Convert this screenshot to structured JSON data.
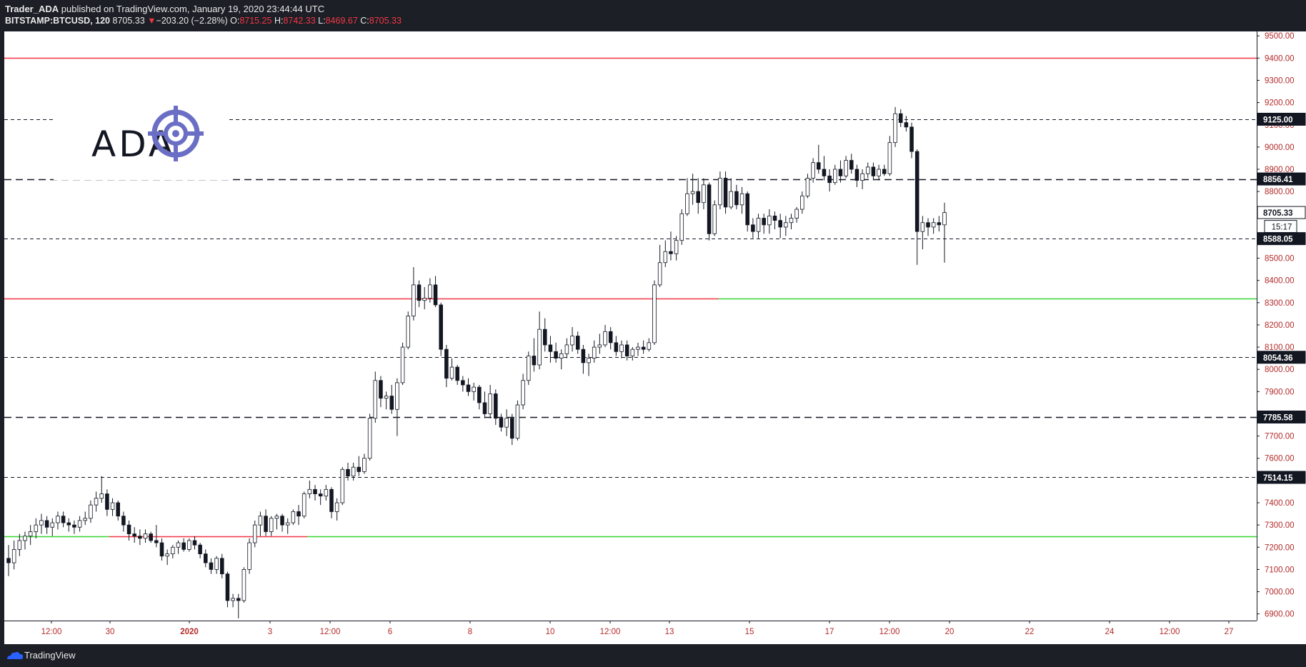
{
  "header": {
    "author": "Trader_ADA",
    "published_text": "published on TradingView.com, January 19, 2020 23:44:44 UTC",
    "symbol": "BITSTAMP:BTCUSD, 120",
    "last": "8705.33",
    "change_arrow": "▼",
    "change": "−203.20 (−2.28%)",
    "o_label": "O:",
    "o_value": "8715.25",
    "h_label": "H:",
    "h_value": "8742.33",
    "l_label": "L:",
    "l_value": "8469.67",
    "c_label": "C:",
    "c_value": "8705.33"
  },
  "watermark": {
    "text": "ADA",
    "icon": "crosshair-target-icon",
    "color": "#6a6ec4"
  },
  "footer": {
    "brand": "TradingView",
    "icon": "tradingview-cloud-icon"
  },
  "colors": {
    "background": "#ffffff",
    "candle_down": "#131722",
    "candle_up": "#ffffff",
    "resistance": "#f23645",
    "support": "#39d631",
    "axis_text": "#b52a2a",
    "level_dash": "#131722"
  },
  "chart_data": {
    "type": "candlestick",
    "symbol": "BITSTAMP:BTCUSD",
    "interval": "120",
    "ylim": [
      6870,
      9520
    ],
    "y_ticks": [
      6900,
      7000,
      7100,
      7200,
      7300,
      7400,
      7500,
      7600,
      7700,
      7800,
      7900,
      8000,
      8100,
      8200,
      8300,
      8400,
      8500,
      8600,
      8700,
      8800,
      8900,
      9000,
      9100,
      9200,
      9300,
      9400,
      9500
    ],
    "x_ticks": [
      "12:00",
      "30",
      "2020",
      "3",
      "12:00",
      "6",
      "8",
      "10",
      "12:00",
      "13",
      "15",
      "17",
      "12:00",
      "20",
      "22",
      "24",
      "12:00",
      "27"
    ],
    "x_tick_emphasis": "2020",
    "price_labels": [
      {
        "value": "9125.00",
        "style": "dash-fine"
      },
      {
        "value": "8856.41",
        "style": "dash-bold"
      },
      {
        "value": "8705.33",
        "style": "last-price"
      },
      {
        "value": "15:17",
        "style": "countdown"
      },
      {
        "value": "8588.05",
        "style": "dash-fine"
      },
      {
        "value": "8054.36",
        "style": "dash-fine"
      },
      {
        "value": "7785.58",
        "style": "dash-bold"
      },
      {
        "value": "7514.15",
        "style": "dash-fine"
      }
    ],
    "horizontal_levels": [
      {
        "price": 9400,
        "color": "red",
        "style": "solid"
      },
      {
        "price": 9125.0,
        "color": "black",
        "style": "dash-fine"
      },
      {
        "price": 8856.41,
        "color": "black",
        "style": "dash-bold"
      },
      {
        "price": 8588.05,
        "color": "black",
        "style": "dash-fine"
      },
      {
        "price": 8320,
        "color": "red-then-green",
        "flip_after": "14 00:00",
        "style": "solid"
      },
      {
        "price": 8054.36,
        "color": "black",
        "style": "dash-fine"
      },
      {
        "price": 7785.58,
        "color": "black",
        "style": "dash-bold"
      },
      {
        "price": 7514.15,
        "color": "black",
        "style": "dash-fine"
      },
      {
        "price": 7250,
        "color": "green-red-green",
        "style": "solid"
      }
    ],
    "candles": [
      [
        7150,
        7210,
        7070,
        7130
      ],
      [
        7130,
        7230,
        7100,
        7190
      ],
      [
        7190,
        7260,
        7160,
        7230
      ],
      [
        7230,
        7270,
        7190,
        7250
      ],
      [
        7250,
        7300,
        7210,
        7270
      ],
      [
        7270,
        7330,
        7240,
        7300
      ],
      [
        7300,
        7350,
        7260,
        7320
      ],
      [
        7320,
        7340,
        7260,
        7290
      ],
      [
        7290,
        7330,
        7250,
        7310
      ],
      [
        7310,
        7360,
        7280,
        7340
      ],
      [
        7340,
        7360,
        7290,
        7310
      ],
      [
        7310,
        7330,
        7270,
        7300
      ],
      [
        7300,
        7320,
        7260,
        7290
      ],
      [
        7290,
        7340,
        7270,
        7320
      ],
      [
        7320,
        7360,
        7300,
        7330
      ],
      [
        7330,
        7410,
        7310,
        7390
      ],
      [
        7390,
        7450,
        7360,
        7420
      ],
      [
        7420,
        7520,
        7400,
        7440
      ],
      [
        7440,
        7460,
        7340,
        7370
      ],
      [
        7370,
        7420,
        7340,
        7400
      ],
      [
        7400,
        7410,
        7320,
        7340
      ],
      [
        7340,
        7360,
        7270,
        7300
      ],
      [
        7300,
        7320,
        7230,
        7260
      ],
      [
        7260,
        7290,
        7220,
        7250
      ],
      [
        7250,
        7280,
        7210,
        7240
      ],
      [
        7240,
        7280,
        7220,
        7260
      ],
      [
        7260,
        7270,
        7220,
        7230
      ],
      [
        7230,
        7300,
        7200,
        7220
      ],
      [
        7220,
        7240,
        7140,
        7160
      ],
      [
        7160,
        7190,
        7120,
        7170
      ],
      [
        7170,
        7210,
        7150,
        7200
      ],
      [
        7200,
        7230,
        7170,
        7220
      ],
      [
        7220,
        7240,
        7180,
        7190
      ],
      [
        7190,
        7240,
        7180,
        7230
      ],
      [
        7230,
        7250,
        7190,
        7210
      ],
      [
        7210,
        7220,
        7150,
        7170
      ],
      [
        7170,
        7190,
        7110,
        7130
      ],
      [
        7130,
        7150,
        7080,
        7100
      ],
      [
        7100,
        7160,
        7080,
        7150
      ],
      [
        7150,
        7170,
        7060,
        7080
      ],
      [
        7080,
        7090,
        6930,
        6960
      ],
      [
        6960,
        6990,
        6930,
        6970
      ],
      [
        6970,
        6990,
        6880,
        6960
      ],
      [
        6960,
        7110,
        6950,
        7100
      ],
      [
        7100,
        7240,
        7080,
        7220
      ],
      [
        7220,
        7320,
        7200,
        7300
      ],
      [
        7300,
        7360,
        7250,
        7340
      ],
      [
        7340,
        7370,
        7250,
        7270
      ],
      [
        7270,
        7340,
        7250,
        7330
      ],
      [
        7330,
        7350,
        7280,
        7340
      ],
      [
        7340,
        7350,
        7270,
        7300
      ],
      [
        7300,
        7330,
        7260,
        7310
      ],
      [
        7310,
        7370,
        7300,
        7360
      ],
      [
        7360,
        7390,
        7300,
        7340
      ],
      [
        7340,
        7450,
        7330,
        7440
      ],
      [
        7440,
        7500,
        7420,
        7460
      ],
      [
        7460,
        7480,
        7410,
        7440
      ],
      [
        7440,
        7460,
        7390,
        7430
      ],
      [
        7430,
        7480,
        7410,
        7460
      ],
      [
        7460,
        7470,
        7330,
        7360
      ],
      [
        7360,
        7420,
        7320,
        7400
      ],
      [
        7400,
        7560,
        7390,
        7550
      ],
      [
        7550,
        7580,
        7500,
        7520
      ],
      [
        7520,
        7580,
        7500,
        7560
      ],
      [
        7560,
        7610,
        7520,
        7540
      ],
      [
        7540,
        7620,
        7530,
        7600
      ],
      [
        7600,
        7800,
        7590,
        7780
      ],
      [
        7780,
        7990,
        7760,
        7950
      ],
      [
        7950,
        7970,
        7830,
        7870
      ],
      [
        7870,
        7900,
        7820,
        7880
      ],
      [
        7880,
        7930,
        7800,
        7820
      ],
      [
        7820,
        7960,
        7700,
        7940
      ],
      [
        7940,
        8120,
        7930,
        8100
      ],
      [
        8100,
        8260,
        8090,
        8240
      ],
      [
        8240,
        8460,
        8220,
        8380
      ],
      [
        8380,
        8400,
        8280,
        8310
      ],
      [
        8310,
        8370,
        8270,
        8320
      ],
      [
        8320,
        8410,
        8300,
        8380
      ],
      [
        8380,
        8420,
        8280,
        8290
      ],
      [
        8290,
        8300,
        8060,
        8090
      ],
      [
        8090,
        8110,
        7920,
        7960
      ],
      [
        7960,
        8050,
        7950,
        8010
      ],
      [
        8010,
        8020,
        7930,
        7950
      ],
      [
        7950,
        7970,
        7900,
        7930
      ],
      [
        7930,
        7960,
        7880,
        7900
      ],
      [
        7900,
        7940,
        7860,
        7920
      ],
      [
        7920,
        7930,
        7820,
        7850
      ],
      [
        7850,
        7900,
        7780,
        7800
      ],
      [
        7800,
        7930,
        7780,
        7890
      ],
      [
        7890,
        7910,
        7750,
        7780
      ],
      [
        7780,
        7800,
        7720,
        7740
      ],
      [
        7740,
        7820,
        7700,
        7780
      ],
      [
        7780,
        7800,
        7660,
        7690
      ],
      [
        7690,
        7860,
        7680,
        7840
      ],
      [
        7840,
        7980,
        7820,
        7950
      ],
      [
        7950,
        8080,
        7930,
        8060
      ],
      [
        8060,
        8140,
        7990,
        8020
      ],
      [
        8020,
        8260,
        8000,
        8180
      ],
      [
        8180,
        8230,
        8080,
        8110
      ],
      [
        8110,
        8150,
        8030,
        8080
      ],
      [
        8080,
        8120,
        8030,
        8050
      ],
      [
        8050,
        8090,
        8000,
        8070
      ],
      [
        8070,
        8140,
        8050,
        8110
      ],
      [
        8110,
        8190,
        8080,
        8150
      ],
      [
        8150,
        8170,
        8070,
        8090
      ],
      [
        8090,
        8110,
        7980,
        8030
      ],
      [
        8030,
        8070,
        7970,
        8050
      ],
      [
        8050,
        8130,
        8030,
        8100
      ],
      [
        8100,
        8160,
        8070,
        8110
      ],
      [
        8110,
        8200,
        8100,
        8170
      ],
      [
        8170,
        8190,
        8090,
        8120
      ],
      [
        8120,
        8150,
        8060,
        8080
      ],
      [
        8080,
        8130,
        8050,
        8110
      ],
      [
        8110,
        8130,
        8040,
        8060
      ],
      [
        8060,
        8100,
        8040,
        8090
      ],
      [
        8090,
        8120,
        8060,
        8100
      ],
      [
        8100,
        8130,
        8070,
        8090
      ],
      [
        8090,
        8140,
        8080,
        8120
      ],
      [
        8120,
        8400,
        8110,
        8380
      ],
      [
        8380,
        8560,
        8370,
        8480
      ],
      [
        8480,
        8580,
        8460,
        8530
      ],
      [
        8530,
        8620,
        8490,
        8520
      ],
      [
        8520,
        8600,
        8490,
        8580
      ],
      [
        8580,
        8720,
        8560,
        8700
      ],
      [
        8700,
        8860,
        8690,
        8790
      ],
      [
        8790,
        8880,
        8740,
        8800
      ],
      [
        8800,
        8860,
        8700,
        8750
      ],
      [
        8750,
        8860,
        8720,
        8830
      ],
      [
        8830,
        8840,
        8580,
        8610
      ],
      [
        8610,
        8760,
        8600,
        8740
      ],
      [
        8740,
        8890,
        8720,
        8860
      ],
      [
        8860,
        8890,
        8700,
        8730
      ],
      [
        8730,
        8860,
        8720,
        8800
      ],
      [
        8800,
        8830,
        8720,
        8740
      ],
      [
        8740,
        8820,
        8700,
        8790
      ],
      [
        8790,
        8800,
        8620,
        8650
      ],
      [
        8650,
        8680,
        8590,
        8620
      ],
      [
        8620,
        8700,
        8590,
        8680
      ],
      [
        8680,
        8700,
        8610,
        8650
      ],
      [
        8650,
        8720,
        8610,
        8690
      ],
      [
        8690,
        8710,
        8630,
        8670
      ],
      [
        8670,
        8700,
        8590,
        8640
      ],
      [
        8640,
        8690,
        8600,
        8660
      ],
      [
        8660,
        8700,
        8630,
        8680
      ],
      [
        8680,
        8730,
        8660,
        8720
      ],
      [
        8720,
        8800,
        8700,
        8780
      ],
      [
        8780,
        8880,
        8770,
        8860
      ],
      [
        8860,
        8950,
        8840,
        8930
      ],
      [
        8930,
        9010,
        8880,
        8900
      ],
      [
        8900,
        8960,
        8850,
        8870
      ],
      [
        8870,
        8900,
        8800,
        8840
      ],
      [
        8840,
        8920,
        8830,
        8900
      ],
      [
        8900,
        8940,
        8840,
        8870
      ],
      [
        8870,
        8960,
        8860,
        8940
      ],
      [
        8940,
        8970,
        8880,
        8900
      ],
      [
        8900,
        8920,
        8820,
        8850
      ],
      [
        8850,
        8900,
        8810,
        8880
      ],
      [
        8880,
        8930,
        8860,
        8910
      ],
      [
        8910,
        8930,
        8850,
        8870
      ],
      [
        8870,
        8920,
        8850,
        8900
      ],
      [
        8900,
        8920,
        8870,
        8880
      ],
      [
        8880,
        9050,
        8870,
        9020
      ],
      [
        9020,
        9180,
        9000,
        9150
      ],
      [
        9150,
        9170,
        9090,
        9110
      ],
      [
        9110,
        9140,
        9070,
        9090
      ],
      [
        9090,
        9110,
        8950,
        8980
      ],
      [
        8980,
        8990,
        8470,
        8620
      ],
      [
        8620,
        8690,
        8540,
        8660
      ],
      [
        8660,
        8680,
        8600,
        8640
      ],
      [
        8640,
        8680,
        8610,
        8660
      ],
      [
        8660,
        8690,
        8620,
        8650
      ],
      [
        8650,
        8750,
        8480,
        8705.33
      ]
    ]
  }
}
